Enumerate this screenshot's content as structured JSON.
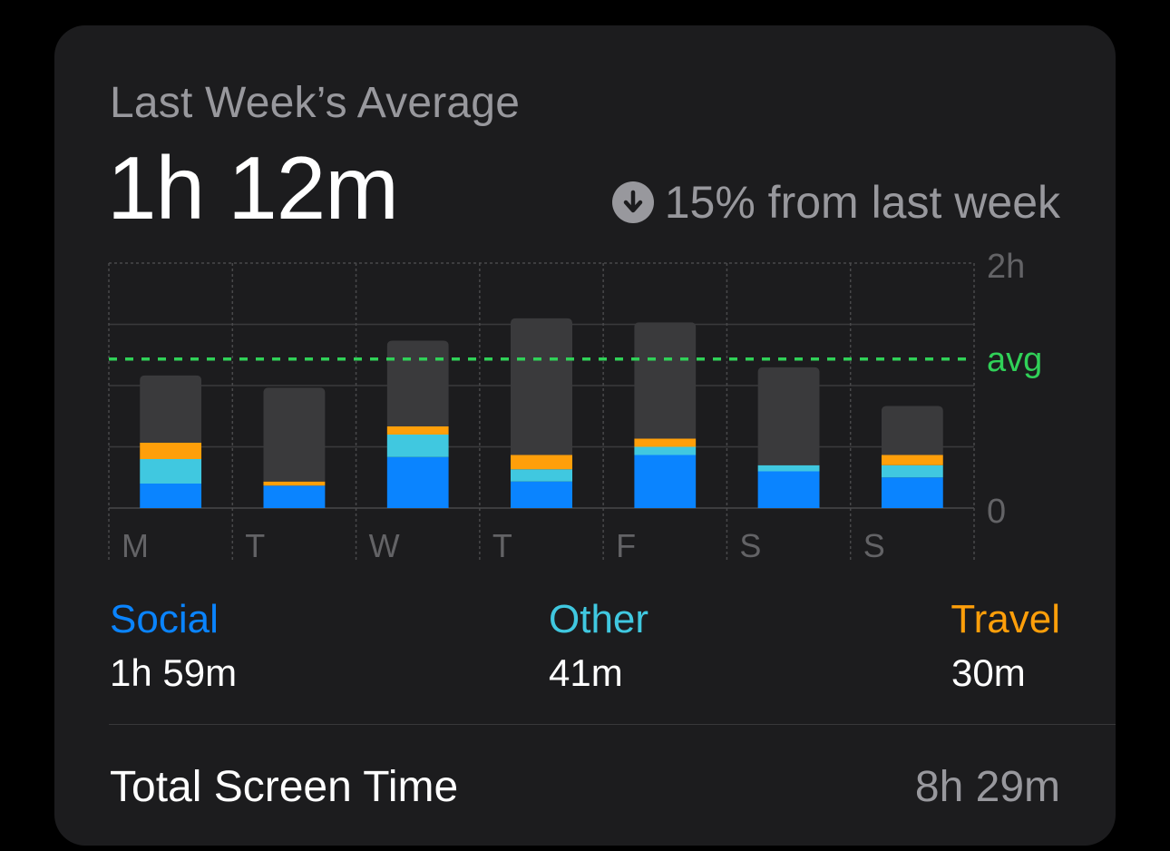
{
  "card": {
    "subtitle": "Last Week’s Average",
    "average": "1h 12m",
    "change_text": "15% from last week",
    "change_icon": "arrow-down-circle-icon"
  },
  "chart_data": {
    "type": "bar",
    "stacked": true,
    "categories": [
      "M",
      "T",
      "W",
      "T",
      "F",
      "S",
      "S"
    ],
    "y_unit": "minutes",
    "ylim": [
      0,
      120
    ],
    "y_tick_labels": [
      "2h",
      "0"
    ],
    "avg_minutes": 73,
    "avg_label": "avg",
    "series": [
      {
        "name": "Social",
        "color": "#0a84ff",
        "values": [
          12,
          11,
          25,
          13,
          26,
          18,
          15
        ]
      },
      {
        "name": "Other",
        "color": "#40c8e0",
        "values": [
          12,
          0,
          11,
          6,
          4,
          3,
          6
        ]
      },
      {
        "name": "Travel",
        "color": "#ff9f0a",
        "values": [
          8,
          2,
          4,
          7,
          4,
          0,
          5
        ]
      },
      {
        "color": "#3a3a3c",
        "values": [
          33,
          46,
          42,
          67,
          57,
          48,
          24
        ]
      }
    ],
    "gridlines": true
  },
  "legend": [
    {
      "label": "Social",
      "value": "1h 59m",
      "color": "#0a84ff"
    },
    {
      "label": "Other",
      "value": "41m",
      "color": "#40c8e0"
    },
    {
      "label": "Travel",
      "value": "30m",
      "color": "#ff9f0a"
    }
  ],
  "footer": {
    "label": "Total Screen Time",
    "value": "8h 29m"
  }
}
